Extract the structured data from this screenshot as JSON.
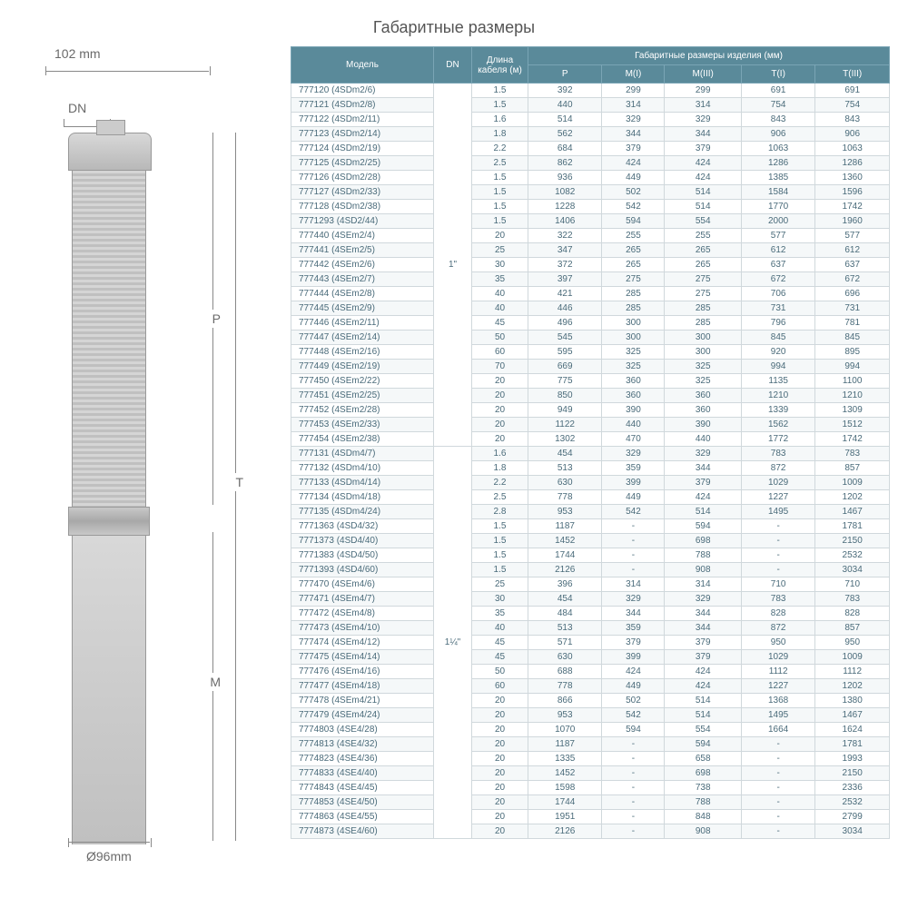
{
  "title": "Габаритные размеры",
  "diagram": {
    "top_dim": "102 mm",
    "dn_label": "DN",
    "bot_dim": "Ø96mm",
    "p_label": "P",
    "t_label": "T",
    "m_label": "M"
  },
  "table": {
    "headers": {
      "model": "Модель",
      "dn": "DN",
      "cable": "Длина кабеля (м)",
      "dims_group": "Габаритные размеры изделия (мм)",
      "p": "P",
      "m1": "M(I)",
      "m3": "M(III)",
      "t1": "T(I)",
      "t3": "T(III)"
    },
    "groups": [
      {
        "dn": "1\"",
        "rows": [
          {
            "model": "777120 (4SDm2/6)",
            "cable": "1.5",
            "p": "392",
            "m1": "299",
            "m3": "299",
            "t1": "691",
            "t3": "691"
          },
          {
            "model": "777121 (4SDm2/8)",
            "cable": "1.5",
            "p": "440",
            "m1": "314",
            "m3": "314",
            "t1": "754",
            "t3": "754"
          },
          {
            "model": "777122 (4SDm2/11)",
            "cable": "1.6",
            "p": "514",
            "m1": "329",
            "m3": "329",
            "t1": "843",
            "t3": "843"
          },
          {
            "model": "777123 (4SDm2/14)",
            "cable": "1.8",
            "p": "562",
            "m1": "344",
            "m3": "344",
            "t1": "906",
            "t3": "906"
          },
          {
            "model": "777124 (4SDm2/19)",
            "cable": "2.2",
            "p": "684",
            "m1": "379",
            "m3": "379",
            "t1": "1063",
            "t3": "1063"
          },
          {
            "model": "777125 (4SDm2/25)",
            "cable": "2.5",
            "p": "862",
            "m1": "424",
            "m3": "424",
            "t1": "1286",
            "t3": "1286"
          },
          {
            "model": "777126 (4SDm2/28)",
            "cable": "1.5",
            "p": "936",
            "m1": "449",
            "m3": "424",
            "t1": "1385",
            "t3": "1360"
          },
          {
            "model": "777127 (4SDm2/33)",
            "cable": "1.5",
            "p": "1082",
            "m1": "502",
            "m3": "514",
            "t1": "1584",
            "t3": "1596"
          },
          {
            "model": "777128 (4SDm2/38)",
            "cable": "1.5",
            "p": "1228",
            "m1": "542",
            "m3": "514",
            "t1": "1770",
            "t3": "1742"
          },
          {
            "model": "7771293 (4SD2/44)",
            "cable": "1.5",
            "p": "1406",
            "m1": "594",
            "m3": "554",
            "t1": "2000",
            "t3": "1960"
          },
          {
            "model": "777440 (4SEm2/4)",
            "cable": "20",
            "p": "322",
            "m1": "255",
            "m3": "255",
            "t1": "577",
            "t3": "577"
          },
          {
            "model": "777441 (4SEm2/5)",
            "cable": "25",
            "p": "347",
            "m1": "265",
            "m3": "265",
            "t1": "612",
            "t3": "612"
          },
          {
            "model": "777442 (4SEm2/6)",
            "cable": "30",
            "p": "372",
            "m1": "265",
            "m3": "265",
            "t1": "637",
            "t3": "637"
          },
          {
            "model": "777443 (4SEm2/7)",
            "cable": "35",
            "p": "397",
            "m1": "275",
            "m3": "275",
            "t1": "672",
            "t3": "672"
          },
          {
            "model": "777444 (4SEm2/8)",
            "cable": "40",
            "p": "421",
            "m1": "285",
            "m3": "275",
            "t1": "706",
            "t3": "696"
          },
          {
            "model": "777445 (4SEm2/9)",
            "cable": "40",
            "p": "446",
            "m1": "285",
            "m3": "285",
            "t1": "731",
            "t3": "731"
          },
          {
            "model": "777446 (4SEm2/11)",
            "cable": "45",
            "p": "496",
            "m1": "300",
            "m3": "285",
            "t1": "796",
            "t3": "781"
          },
          {
            "model": "777447 (4SEm2/14)",
            "cable": "50",
            "p": "545",
            "m1": "300",
            "m3": "300",
            "t1": "845",
            "t3": "845"
          },
          {
            "model": "777448 (4SEm2/16)",
            "cable": "60",
            "p": "595",
            "m1": "325",
            "m3": "300",
            "t1": "920",
            "t3": "895"
          },
          {
            "model": "777449 (4SEm2/19)",
            "cable": "70",
            "p": "669",
            "m1": "325",
            "m3": "325",
            "t1": "994",
            "t3": "994"
          },
          {
            "model": "777450 (4SEm2/22)",
            "cable": "20",
            "p": "775",
            "m1": "360",
            "m3": "325",
            "t1": "1135",
            "t3": "1100"
          },
          {
            "model": "777451 (4SEm2/25)",
            "cable": "20",
            "p": "850",
            "m1": "360",
            "m3": "360",
            "t1": "1210",
            "t3": "1210"
          },
          {
            "model": "777452 (4SEm2/28)",
            "cable": "20",
            "p": "949",
            "m1": "390",
            "m3": "360",
            "t1": "1339",
            "t3": "1309"
          },
          {
            "model": "777453 (4SEm2/33)",
            "cable": "20",
            "p": "1122",
            "m1": "440",
            "m3": "390",
            "t1": "1562",
            "t3": "1512"
          },
          {
            "model": "777454 (4SEm2/38)",
            "cable": "20",
            "p": "1302",
            "m1": "470",
            "m3": "440",
            "t1": "1772",
            "t3": "1742"
          }
        ]
      },
      {
        "dn": "1¼\"",
        "rows": [
          {
            "model": "777131 (4SDm4/7)",
            "cable": "1.6",
            "p": "454",
            "m1": "329",
            "m3": "329",
            "t1": "783",
            "t3": "783"
          },
          {
            "model": "777132 (4SDm4/10)",
            "cable": "1.8",
            "p": "513",
            "m1": "359",
            "m3": "344",
            "t1": "872",
            "t3": "857"
          },
          {
            "model": "777133 (4SDm4/14)",
            "cable": "2.2",
            "p": "630",
            "m1": "399",
            "m3": "379",
            "t1": "1029",
            "t3": "1009"
          },
          {
            "model": "777134 (4SDm4/18)",
            "cable": "2.5",
            "p": "778",
            "m1": "449",
            "m3": "424",
            "t1": "1227",
            "t3": "1202"
          },
          {
            "model": "777135 (4SDm4/24)",
            "cable": "2.8",
            "p": "953",
            "m1": "542",
            "m3": "514",
            "t1": "1495",
            "t3": "1467"
          },
          {
            "model": "7771363 (4SD4/32)",
            "cable": "1.5",
            "p": "1187",
            "m1": "-",
            "m3": "594",
            "t1": "-",
            "t3": "1781"
          },
          {
            "model": "7771373 (4SD4/40)",
            "cable": "1.5",
            "p": "1452",
            "m1": "-",
            "m3": "698",
            "t1": "-",
            "t3": "2150"
          },
          {
            "model": "7771383 (4SD4/50)",
            "cable": "1.5",
            "p": "1744",
            "m1": "-",
            "m3": "788",
            "t1": "-",
            "t3": "2532"
          },
          {
            "model": "7771393 (4SD4/60)",
            "cable": "1.5",
            "p": "2126",
            "m1": "-",
            "m3": "908",
            "t1": "-",
            "t3": "3034"
          },
          {
            "model": "777470 (4SEm4/6)",
            "cable": "25",
            "p": "396",
            "m1": "314",
            "m3": "314",
            "t1": "710",
            "t3": "710"
          },
          {
            "model": "777471 (4SEm4/7)",
            "cable": "30",
            "p": "454",
            "m1": "329",
            "m3": "329",
            "t1": "783",
            "t3": "783"
          },
          {
            "model": "777472 (4SEm4/8)",
            "cable": "35",
            "p": "484",
            "m1": "344",
            "m3": "344",
            "t1": "828",
            "t3": "828"
          },
          {
            "model": "777473 (4SEm4/10)",
            "cable": "40",
            "p": "513",
            "m1": "359",
            "m3": "344",
            "t1": "872",
            "t3": "857"
          },
          {
            "model": "777474 (4SEm4/12)",
            "cable": "45",
            "p": "571",
            "m1": "379",
            "m3": "379",
            "t1": "950",
            "t3": "950"
          },
          {
            "model": "777475 (4SEm4/14)",
            "cable": "45",
            "p": "630",
            "m1": "399",
            "m3": "379",
            "t1": "1029",
            "t3": "1009"
          },
          {
            "model": "777476 (4SEm4/16)",
            "cable": "50",
            "p": "688",
            "m1": "424",
            "m3": "424",
            "t1": "1112",
            "t3": "1112"
          },
          {
            "model": "777477 (4SEm4/18)",
            "cable": "60",
            "p": "778",
            "m1": "449",
            "m3": "424",
            "t1": "1227",
            "t3": "1202"
          },
          {
            "model": "777478 (4SEm4/21)",
            "cable": "20",
            "p": "866",
            "m1": "502",
            "m3": "514",
            "t1": "1368",
            "t3": "1380"
          },
          {
            "model": "777479 (4SEm4/24)",
            "cable": "20",
            "p": "953",
            "m1": "542",
            "m3": "514",
            "t1": "1495",
            "t3": "1467"
          },
          {
            "model": "7774803 (4SE4/28)",
            "cable": "20",
            "p": "1070",
            "m1": "594",
            "m3": "554",
            "t1": "1664",
            "t3": "1624"
          },
          {
            "model": "7774813 (4SE4/32)",
            "cable": "20",
            "p": "1187",
            "m1": "-",
            "m3": "594",
            "t1": "-",
            "t3": "1781"
          },
          {
            "model": "7774823 (4SE4/36)",
            "cable": "20",
            "p": "1335",
            "m1": "-",
            "m3": "658",
            "t1": "-",
            "t3": "1993"
          },
          {
            "model": "7774833 (4SE4/40)",
            "cable": "20",
            "p": "1452",
            "m1": "-",
            "m3": "698",
            "t1": "-",
            "t3": "2150"
          },
          {
            "model": "7774843 (4SE4/45)",
            "cable": "20",
            "p": "1598",
            "m1": "-",
            "m3": "738",
            "t1": "-",
            "t3": "2336"
          },
          {
            "model": "7774853 (4SE4/50)",
            "cable": "20",
            "p": "1744",
            "m1": "-",
            "m3": "788",
            "t1": "-",
            "t3": "2532"
          },
          {
            "model": "7774863 (4SE4/55)",
            "cable": "20",
            "p": "1951",
            "m1": "-",
            "m3": "848",
            "t1": "-",
            "t3": "2799"
          },
          {
            "model": "7774873 (4SE4/60)",
            "cable": "20",
            "p": "2126",
            "m1": "-",
            "m3": "908",
            "t1": "-",
            "t3": "3034"
          }
        ]
      }
    ]
  }
}
